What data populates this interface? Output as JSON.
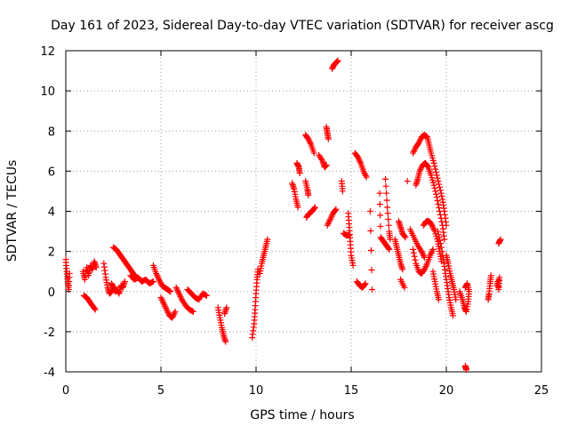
{
  "chart_data": {
    "type": "scatter",
    "title": "Day 161 of 2023, Sidereal Day-to-day VTEC variation (SDTVAR) for receiver ascg",
    "xlabel": "GPS time / hours",
    "ylabel": "SDTVAR / TECUs",
    "xlim": [
      0,
      25
    ],
    "ylim": [
      -4,
      12
    ],
    "xticks": [
      0,
      5,
      10,
      15,
      20,
      25
    ],
    "yticks": [
      -4,
      -2,
      0,
      2,
      4,
      6,
      8,
      10,
      12
    ],
    "xtick_labels": [
      "0",
      "5",
      "10",
      "15",
      "20",
      "25"
    ],
    "ytick_labels": [
      "-4",
      "-2",
      "0",
      "2",
      "4",
      "6",
      "8",
      "10",
      "12"
    ],
    "grid": true,
    "marker": "plus",
    "color": "#ff0000",
    "segments": [
      [
        [
          0.0,
          1.6
        ],
        [
          0.05,
          1.0
        ],
        [
          0.1,
          0.5
        ],
        [
          0.15,
          0.1
        ],
        [
          0.2,
          0.9
        ]
      ],
      [
        [
          0.9,
          1.0
        ],
        [
          1.0,
          0.6
        ],
        [
          1.1,
          1.2
        ],
        [
          1.2,
          0.8
        ],
        [
          1.3,
          1.3
        ],
        [
          1.4,
          1.1
        ],
        [
          1.5,
          1.5
        ],
        [
          1.6,
          1.2
        ]
      ],
      [
        [
          0.95,
          -0.2
        ],
        [
          1.1,
          -0.3
        ],
        [
          1.25,
          -0.5
        ],
        [
          1.4,
          -0.7
        ],
        [
          1.55,
          -0.9
        ]
      ],
      [
        [
          2.0,
          1.4
        ],
        [
          2.1,
          0.7
        ],
        [
          2.2,
          0.2
        ],
        [
          2.3,
          -0.1
        ],
        [
          2.4,
          0.0
        ]
      ],
      [
        [
          2.5,
          2.2
        ],
        [
          2.65,
          2.1
        ],
        [
          2.8,
          1.9
        ],
        [
          2.95,
          1.7
        ],
        [
          3.1,
          1.5
        ],
        [
          3.25,
          1.3
        ],
        [
          3.4,
          1.1
        ],
        [
          3.55,
          0.9
        ],
        [
          3.7,
          0.7
        ]
      ],
      [
        [
          2.4,
          0.4
        ],
        [
          2.5,
          0.2
        ],
        [
          2.6,
          0.0
        ],
        [
          2.7,
          0.1
        ],
        [
          2.8,
          -0.1
        ],
        [
          2.9,
          0.3
        ],
        [
          3.0,
          0.2
        ],
        [
          3.1,
          0.5
        ]
      ],
      [
        [
          3.4,
          0.8
        ],
        [
          3.6,
          0.6
        ],
        [
          3.8,
          0.7
        ],
        [
          4.0,
          0.5
        ],
        [
          4.2,
          0.6
        ],
        [
          4.4,
          0.4
        ],
        [
          4.6,
          0.5
        ]
      ],
      [
        [
          4.6,
          1.3
        ],
        [
          4.75,
          0.9
        ],
        [
          4.9,
          0.6
        ],
        [
          5.05,
          0.3
        ],
        [
          5.2,
          0.2
        ],
        [
          5.35,
          0.1
        ],
        [
          5.5,
          0.0
        ]
      ],
      [
        [
          5.0,
          -0.3
        ],
        [
          5.15,
          -0.6
        ],
        [
          5.3,
          -0.9
        ],
        [
          5.45,
          -1.2
        ],
        [
          5.6,
          -1.3
        ],
        [
          5.75,
          -1.0
        ]
      ],
      [
        [
          5.8,
          0.2
        ],
        [
          5.95,
          -0.1
        ],
        [
          6.1,
          -0.4
        ],
        [
          6.3,
          -0.7
        ],
        [
          6.5,
          -0.9
        ],
        [
          6.7,
          -1.0
        ]
      ],
      [
        [
          6.4,
          0.1
        ],
        [
          6.6,
          -0.1
        ],
        [
          6.8,
          -0.3
        ],
        [
          7.0,
          -0.4
        ],
        [
          7.2,
          -0.1
        ],
        [
          7.4,
          -0.2
        ]
      ],
      [
        [
          8.0,
          -0.8
        ],
        [
          8.1,
          -1.3
        ],
        [
          8.2,
          -1.8
        ],
        [
          8.3,
          -2.2
        ],
        [
          8.4,
          -2.5
        ]
      ],
      [
        [
          8.45,
          -0.8
        ],
        [
          8.35,
          -1.1
        ]
      ],
      [
        [
          9.8,
          -2.3
        ],
        [
          9.9,
          -1.6
        ],
        [
          9.95,
          -0.9
        ],
        [
          10.0,
          -0.1
        ],
        [
          10.05,
          0.6
        ],
        [
          10.1,
          1.1
        ]
      ],
      [
        [
          10.2,
          0.9
        ],
        [
          10.3,
          1.4
        ],
        [
          10.4,
          1.8
        ],
        [
          10.5,
          2.2
        ],
        [
          10.6,
          2.6
        ]
      ],
      [
        [
          11.9,
          5.4
        ],
        [
          12.0,
          5.1
        ],
        [
          12.1,
          4.6
        ],
        [
          12.2,
          4.2
        ]
      ],
      [
        [
          12.15,
          6.4
        ],
        [
          12.25,
          6.2
        ],
        [
          12.3,
          5.9
        ]
      ],
      [
        [
          12.6,
          7.8
        ],
        [
          12.75,
          7.6
        ],
        [
          12.9,
          7.3
        ],
        [
          13.05,
          6.9
        ]
      ],
      [
        [
          12.6,
          5.5
        ],
        [
          12.7,
          5.1
        ],
        [
          12.75,
          4.8
        ]
      ],
      [
        [
          12.65,
          3.7
        ],
        [
          12.8,
          3.9
        ],
        [
          12.95,
          4.0
        ],
        [
          13.1,
          4.2
        ]
      ],
      [
        [
          13.3,
          6.8
        ],
        [
          13.5,
          6.5
        ],
        [
          13.6,
          6.2
        ],
        [
          13.7,
          6.3
        ]
      ],
      [
        [
          13.7,
          8.2
        ],
        [
          13.75,
          7.9
        ],
        [
          13.8,
          7.6
        ]
      ],
      [
        [
          14.0,
          11.1
        ],
        [
          14.1,
          11.3
        ],
        [
          14.2,
          11.4
        ],
        [
          14.3,
          11.5
        ]
      ],
      [
        [
          13.75,
          3.3
        ],
        [
          13.9,
          3.6
        ],
        [
          14.05,
          3.9
        ],
        [
          14.2,
          4.1
        ]
      ],
      [
        [
          14.5,
          5.5
        ],
        [
          14.55,
          5.0
        ]
      ],
      [
        [
          14.6,
          2.9
        ],
        [
          14.75,
          2.8
        ],
        [
          14.9,
          2.8
        ]
      ],
      [
        [
          14.85,
          3.9
        ],
        [
          14.9,
          3.2
        ],
        [
          14.95,
          2.5
        ],
        [
          15.0,
          1.8
        ],
        [
          15.1,
          1.3
        ]
      ],
      [
        [
          15.2,
          6.9
        ],
        [
          15.35,
          6.7
        ],
        [
          15.5,
          6.4
        ],
        [
          15.65,
          6.0
        ],
        [
          15.8,
          5.7
        ]
      ],
      [
        [
          15.3,
          0.5
        ],
        [
          15.45,
          0.3
        ],
        [
          15.6,
          0.2
        ],
        [
          15.75,
          0.4
        ]
      ],
      [
        [
          16.0,
          4.0
        ],
        [
          16.1,
          0.1
        ]
      ],
      [
        [
          16.5,
          4.9
        ],
        [
          16.55,
          2.7
        ],
        [
          16.7,
          2.5
        ],
        [
          16.85,
          2.3
        ],
        [
          17.0,
          2.1
        ]
      ],
      [
        [
          16.8,
          5.6
        ],
        [
          16.9,
          4.2
        ],
        [
          17.0,
          3.0
        ],
        [
          17.05,
          2.6
        ]
      ],
      [
        [
          17.3,
          2.6
        ],
        [
          17.4,
          2.2
        ],
        [
          17.5,
          1.8
        ],
        [
          17.6,
          1.4
        ],
        [
          17.7,
          1.1
        ]
      ],
      [
        [
          17.5,
          3.5
        ],
        [
          17.6,
          3.2
        ],
        [
          17.7,
          2.9
        ],
        [
          17.85,
          2.7
        ]
      ],
      [
        [
          17.6,
          0.6
        ],
        [
          17.8,
          0.2
        ]
      ],
      [
        [
          17.95,
          5.5
        ]
      ],
      [
        [
          18.1,
          3.1
        ],
        [
          18.3,
          2.7
        ],
        [
          18.5,
          2.3
        ],
        [
          18.7,
          2.0
        ],
        [
          18.85,
          1.7
        ]
      ],
      [
        [
          18.25,
          6.9
        ],
        [
          18.4,
          7.2
        ],
        [
          18.55,
          7.4
        ],
        [
          18.7,
          7.7
        ],
        [
          18.85,
          7.8
        ],
        [
          19.0,
          7.7
        ],
        [
          19.1,
          7.3
        ],
        [
          19.2,
          6.9
        ],
        [
          19.35,
          6.4
        ],
        [
          19.5,
          5.8
        ],
        [
          19.65,
          5.2
        ],
        [
          19.8,
          4.6
        ],
        [
          19.9,
          4.0
        ],
        [
          20.0,
          3.3
        ]
      ],
      [
        [
          18.4,
          5.3
        ],
        [
          18.5,
          5.6
        ],
        [
          18.6,
          6.0
        ],
        [
          18.75,
          6.3
        ],
        [
          18.9,
          6.4
        ],
        [
          19.05,
          6.2
        ],
        [
          19.2,
          5.8
        ],
        [
          19.35,
          5.3
        ],
        [
          19.5,
          4.7
        ],
        [
          19.65,
          4.0
        ],
        [
          19.8,
          3.3
        ],
        [
          19.9,
          2.6
        ]
      ],
      [
        [
          18.25,
          2.1
        ],
        [
          18.4,
          1.4
        ],
        [
          18.55,
          1.0
        ],
        [
          18.7,
          0.9
        ],
        [
          18.85,
          1.1
        ],
        [
          19.0,
          1.4
        ],
        [
          19.15,
          1.8
        ],
        [
          19.3,
          2.1
        ]
      ],
      [
        [
          18.8,
          3.3
        ],
        [
          18.95,
          3.5
        ],
        [
          19.1,
          3.5
        ],
        [
          19.25,
          3.3
        ],
        [
          19.4,
          3.0
        ],
        [
          19.55,
          2.5
        ],
        [
          19.65,
          2.0
        ],
        [
          19.75,
          1.5
        ]
      ],
      [
        [
          19.3,
          1.0
        ],
        [
          19.4,
          0.5
        ],
        [
          19.5,
          0.0
        ],
        [
          19.6,
          -0.4
        ]
      ],
      [
        [
          19.55,
          3.0
        ],
        [
          19.7,
          2.4
        ],
        [
          19.85,
          1.6
        ],
        [
          19.95,
          0.9
        ],
        [
          20.05,
          0.3
        ],
        [
          20.15,
          -0.3
        ],
        [
          20.25,
          -0.8
        ],
        [
          20.35,
          -1.2
        ]
      ],
      [
        [
          20.0,
          1.8
        ],
        [
          20.1,
          1.4
        ],
        [
          20.2,
          0.9
        ],
        [
          20.3,
          0.5
        ],
        [
          20.4,
          0.1
        ],
        [
          20.5,
          -0.4
        ]
      ],
      [
        [
          20.7,
          0.0
        ],
        [
          20.85,
          -0.4
        ],
        [
          20.95,
          -0.8
        ],
        [
          21.05,
          -1.0
        ],
        [
          21.15,
          -0.5
        ],
        [
          21.2,
          0.0
        ],
        [
          21.1,
          0.4
        ],
        [
          21.0,
          0.2
        ]
      ],
      [
        [
          21.0,
          -3.7
        ],
        [
          21.05,
          -3.9
        ]
      ],
      [
        [
          22.2,
          -0.4
        ],
        [
          22.25,
          -0.1
        ],
        [
          22.3,
          0.4
        ],
        [
          22.35,
          0.8
        ]
      ],
      [
        [
          22.7,
          0.5
        ],
        [
          22.75,
          0.1
        ],
        [
          22.8,
          0.7
        ],
        [
          22.65,
          0.3
        ]
      ],
      [
        [
          22.75,
          2.4
        ],
        [
          22.85,
          2.6
        ]
      ]
    ]
  }
}
